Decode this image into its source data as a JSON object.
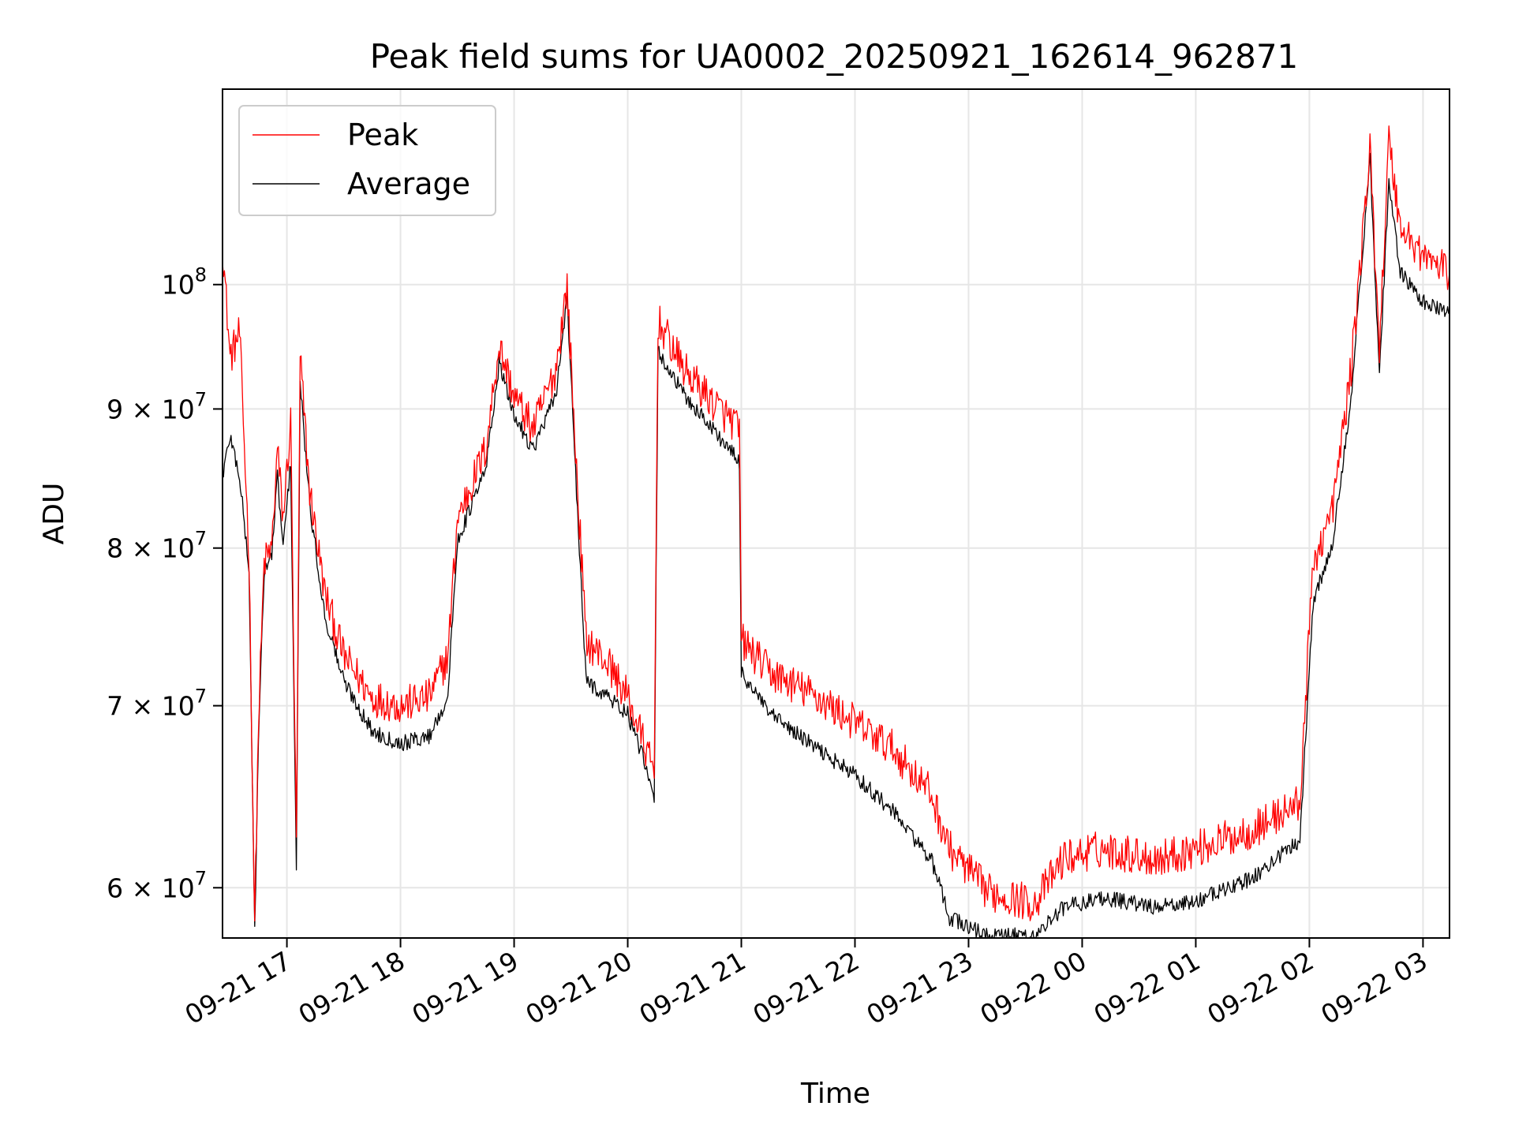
{
  "chart_data": {
    "type": "line",
    "title": "Peak field sums for UA0002_20250921_162614_962871",
    "xlabel": "Time",
    "ylabel": "ADU",
    "y_scale": "log",
    "xlim": [
      "2025-09-21 16:26",
      "2025-09-22 03:14"
    ],
    "ylim": [
      57500000,
      118000000
    ],
    "x_ticks": [
      {
        "value": "2025-09-21 17:00",
        "label": "09-21 17"
      },
      {
        "value": "2025-09-21 18:00",
        "label": "09-21 18"
      },
      {
        "value": "2025-09-21 19:00",
        "label": "09-21 19"
      },
      {
        "value": "2025-09-21 20:00",
        "label": "09-21 20"
      },
      {
        "value": "2025-09-21 21:00",
        "label": "09-21 21"
      },
      {
        "value": "2025-09-21 22:00",
        "label": "09-21 22"
      },
      {
        "value": "2025-09-21 23:00",
        "label": "09-21 23"
      },
      {
        "value": "2025-09-22 00:00",
        "label": "09-22 00"
      },
      {
        "value": "2025-09-22 01:00",
        "label": "09-22 01"
      },
      {
        "value": "2025-09-22 02:00",
        "label": "09-22 02"
      },
      {
        "value": "2025-09-22 03:00",
        "label": "09-22 03"
      }
    ],
    "y_ticks": [
      {
        "value": 100000000,
        "base": "10",
        "exp": "8"
      },
      {
        "value": 90000000,
        "base": "9 × 10",
        "exp": "7"
      },
      {
        "value": 80000000,
        "base": "8 × 10",
        "exp": "7"
      },
      {
        "value": 70000000,
        "base": "7 × 10",
        "exp": "7"
      },
      {
        "value": 60000000,
        "base": "6 × 10",
        "exp": "7"
      }
    ],
    "grid": true,
    "legend_position": "top-left",
    "series": [
      {
        "name": "Peak",
        "color": "#ff0000",
        "points": [
          [
            "2025-09-21 16:26",
            103500000
          ],
          [
            "2025-09-21 16:30",
            94000000
          ],
          [
            "2025-09-21 16:35",
            96000000
          ],
          [
            "2025-09-21 16:40",
            79500000
          ],
          [
            "2025-09-21 16:43",
            58200000
          ],
          [
            "2025-09-21 16:45",
            69000000
          ],
          [
            "2025-09-21 16:48",
            79000000
          ],
          [
            "2025-09-21 16:52",
            80000000
          ],
          [
            "2025-09-21 16:55",
            87000000
          ],
          [
            "2025-09-21 16:58",
            82000000
          ],
          [
            "2025-09-21 17:02",
            89000000
          ],
          [
            "2025-09-21 17:05",
            62000000
          ],
          [
            "2025-09-21 17:07",
            94000000
          ],
          [
            "2025-09-21 17:12",
            84000000
          ],
          [
            "2025-09-21 17:20",
            77000000
          ],
          [
            "2025-09-21 17:30",
            73000000
          ],
          [
            "2025-09-21 17:45",
            70500000
          ],
          [
            "2025-09-21 18:00",
            70000000
          ],
          [
            "2025-09-21 18:15",
            70500000
          ],
          [
            "2025-09-21 18:25",
            73000000
          ],
          [
            "2025-09-21 18:30",
            82000000
          ],
          [
            "2025-09-21 18:45",
            87000000
          ],
          [
            "2025-09-21 18:52",
            95000000
          ],
          [
            "2025-09-21 19:00",
            91000000
          ],
          [
            "2025-09-21 19:10",
            88500000
          ],
          [
            "2025-09-21 19:22",
            93000000
          ],
          [
            "2025-09-21 19:28",
            100000000
          ],
          [
            "2025-09-21 19:32",
            88000000
          ],
          [
            "2025-09-21 19:38",
            74000000
          ],
          [
            "2025-09-21 19:50",
            72500000
          ],
          [
            "2025-09-21 20:00",
            70500000
          ],
          [
            "2025-09-21 20:08",
            68000000
          ],
          [
            "2025-09-21 20:14",
            66000000
          ],
          [
            "2025-09-21 20:16",
            97000000
          ],
          [
            "2025-09-21 20:30",
            93000000
          ],
          [
            "2025-09-21 20:45",
            90500000
          ],
          [
            "2025-09-21 20:59",
            88500000
          ],
          [
            "2025-09-21 21:00",
            74000000
          ],
          [
            "2025-09-21 21:15",
            72000000
          ],
          [
            "2025-09-21 21:40",
            70500000
          ],
          [
            "2025-09-21 22:00",
            69000000
          ],
          [
            "2025-09-21 22:20",
            67500000
          ],
          [
            "2025-09-21 22:40",
            65000000
          ],
          [
            "2025-09-21 22:50",
            62000000
          ],
          [
            "2025-09-21 23:10",
            59800000
          ],
          [
            "2025-09-21 23:35",
            59200000
          ],
          [
            "2025-09-21 23:50",
            61500000
          ],
          [
            "2025-09-22 00:10",
            62000000
          ],
          [
            "2025-09-22 00:40",
            61500000
          ],
          [
            "2025-09-22 01:00",
            62000000
          ],
          [
            "2025-09-22 01:30",
            63000000
          ],
          [
            "2025-09-22 01:55",
            64500000
          ],
          [
            "2025-09-22 02:02",
            79000000
          ],
          [
            "2025-09-22 02:12",
            82500000
          ],
          [
            "2025-09-22 02:22",
            93000000
          ],
          [
            "2025-09-22 02:32",
            112000000
          ],
          [
            "2025-09-22 02:37",
            95000000
          ],
          [
            "2025-09-22 02:42",
            113000000
          ],
          [
            "2025-09-22 02:48",
            105000000
          ],
          [
            "2025-09-22 03:00",
            102500000
          ],
          [
            "2025-09-22 03:14",
            101000000
          ]
        ]
      },
      {
        "name": "Average",
        "color": "#000000",
        "points": [
          [
            "2025-09-21 16:26",
            85000000
          ],
          [
            "2025-09-21 16:30",
            88000000
          ],
          [
            "2025-09-21 16:35",
            85000000
          ],
          [
            "2025-09-21 16:40",
            78500000
          ],
          [
            "2025-09-21 16:43",
            57900000
          ],
          [
            "2025-09-21 16:45",
            68000000
          ],
          [
            "2025-09-21 16:48",
            78500000
          ],
          [
            "2025-09-21 16:52",
            79500000
          ],
          [
            "2025-09-21 16:55",
            85000000
          ],
          [
            "2025-09-21 16:58",
            80000000
          ],
          [
            "2025-09-21 17:02",
            86000000
          ],
          [
            "2025-09-21 17:05",
            61000000
          ],
          [
            "2025-09-21 17:07",
            92000000
          ],
          [
            "2025-09-21 17:12",
            83000000
          ],
          [
            "2025-09-21 17:20",
            75500000
          ],
          [
            "2025-09-21 17:30",
            71500000
          ],
          [
            "2025-09-21 17:45",
            68500000
          ],
          [
            "2025-09-21 18:00",
            67800000
          ],
          [
            "2025-09-21 18:15",
            68200000
          ],
          [
            "2025-09-21 18:25",
            70500000
          ],
          [
            "2025-09-21 18:30",
            80500000
          ],
          [
            "2025-09-21 18:45",
            85500000
          ],
          [
            "2025-09-21 18:52",
            93500000
          ],
          [
            "2025-09-21 19:00",
            89500000
          ],
          [
            "2025-09-21 19:10",
            87000000
          ],
          [
            "2025-09-21 19:22",
            91000000
          ],
          [
            "2025-09-21 19:28",
            99000000
          ],
          [
            "2025-09-21 19:32",
            86500000
          ],
          [
            "2025-09-21 19:38",
            71500000
          ],
          [
            "2025-09-21 19:50",
            70500000
          ],
          [
            "2025-09-21 20:00",
            69500000
          ],
          [
            "2025-09-21 20:08",
            67000000
          ],
          [
            "2025-09-21 20:14",
            64500000
          ],
          [
            "2025-09-21 20:16",
            94500000
          ],
          [
            "2025-09-21 20:30",
            91000000
          ],
          [
            "2025-09-21 20:45",
            88500000
          ],
          [
            "2025-09-21 20:59",
            86000000
          ],
          [
            "2025-09-21 21:00",
            72000000
          ],
          [
            "2025-09-21 21:15",
            69500000
          ],
          [
            "2025-09-21 21:40",
            67500000
          ],
          [
            "2025-09-21 22:00",
            66000000
          ],
          [
            "2025-09-21 22:20",
            64000000
          ],
          [
            "2025-09-21 22:40",
            61500000
          ],
          [
            "2025-09-21 22:50",
            58500000
          ],
          [
            "2025-09-21 23:10",
            57600000
          ],
          [
            "2025-09-21 23:35",
            57600000
          ],
          [
            "2025-09-21 23:50",
            59000000
          ],
          [
            "2025-09-22 00:10",
            59500000
          ],
          [
            "2025-09-22 00:40",
            59000000
          ],
          [
            "2025-09-22 01:00",
            59300000
          ],
          [
            "2025-09-22 01:30",
            60500000
          ],
          [
            "2025-09-22 01:55",
            62500000
          ],
          [
            "2025-09-22 02:02",
            76500000
          ],
          [
            "2025-09-22 02:12",
            80000000
          ],
          [
            "2025-09-22 02:22",
            91000000
          ],
          [
            "2025-09-22 02:32",
            111000000
          ],
          [
            "2025-09-22 02:37",
            93000000
          ],
          [
            "2025-09-22 02:42",
            109000000
          ],
          [
            "2025-09-22 02:48",
            101000000
          ],
          [
            "2025-09-22 03:00",
            98500000
          ],
          [
            "2025-09-22 03:14",
            97500000
          ]
        ]
      }
    ]
  }
}
